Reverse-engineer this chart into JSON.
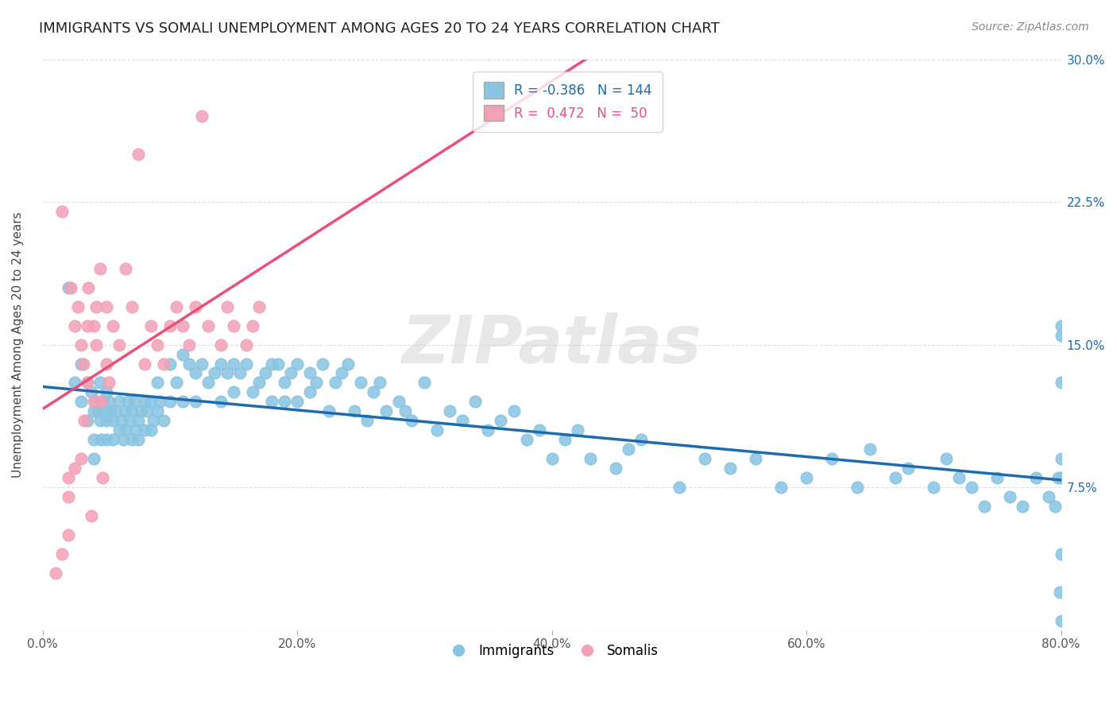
{
  "title": "IMMIGRANTS VS SOMALI UNEMPLOYMENT AMONG AGES 20 TO 24 YEARS CORRELATION CHART",
  "source": "Source: ZipAtlas.com",
  "ylabel": "Unemployment Among Ages 20 to 24 years",
  "xlim": [
    0.0,
    0.8
  ],
  "ylim": [
    0.0,
    0.3
  ],
  "xticks": [
    0.0,
    0.2,
    0.4,
    0.6,
    0.8
  ],
  "yticks": [
    0.0,
    0.075,
    0.15,
    0.225,
    0.3
  ],
  "xtick_labels": [
    "0.0%",
    "20.0%",
    "40.0%",
    "60.0%",
    "80.0%"
  ],
  "ytick_labels": [
    "",
    "7.5%",
    "15.0%",
    "22.5%",
    "30.0%"
  ],
  "immigrant_color": "#89C4E1",
  "somali_color": "#F4A0B5",
  "immigrant_line_color": "#1E6BAD",
  "somali_line_color": "#E8507A",
  "R_immigrant": -0.386,
  "N_immigrant": 144,
  "R_somali": 0.472,
  "N_somali": 50,
  "watermark": "ZIPatlas",
  "background_color": "#FFFFFF",
  "grid_color": "#DDDDDD",
  "title_fontsize": 13,
  "source_fontsize": 10,
  "immigrant_scatter_x": [
    0.02,
    0.025,
    0.03,
    0.03,
    0.035,
    0.035,
    0.038,
    0.04,
    0.04,
    0.04,
    0.042,
    0.043,
    0.045,
    0.045,
    0.046,
    0.047,
    0.048,
    0.05,
    0.05,
    0.05,
    0.052,
    0.053,
    0.055,
    0.055,
    0.057,
    0.06,
    0.06,
    0.062,
    0.063,
    0.065,
    0.065,
    0.067,
    0.068,
    0.07,
    0.07,
    0.072,
    0.073,
    0.075,
    0.075,
    0.077,
    0.08,
    0.08,
    0.082,
    0.085,
    0.085,
    0.087,
    0.09,
    0.09,
    0.092,
    0.095,
    0.1,
    0.1,
    0.105,
    0.11,
    0.11,
    0.115,
    0.12,
    0.12,
    0.125,
    0.13,
    0.135,
    0.14,
    0.14,
    0.145,
    0.15,
    0.15,
    0.155,
    0.16,
    0.165,
    0.17,
    0.175,
    0.18,
    0.18,
    0.185,
    0.19,
    0.19,
    0.195,
    0.2,
    0.2,
    0.21,
    0.21,
    0.215,
    0.22,
    0.225,
    0.23,
    0.235,
    0.24,
    0.245,
    0.25,
    0.255,
    0.26,
    0.265,
    0.27,
    0.28,
    0.285,
    0.29,
    0.3,
    0.31,
    0.32,
    0.33,
    0.34,
    0.35,
    0.36,
    0.37,
    0.38,
    0.39,
    0.4,
    0.41,
    0.42,
    0.43,
    0.45,
    0.46,
    0.47,
    0.5,
    0.52,
    0.54,
    0.56,
    0.58,
    0.6,
    0.62,
    0.64,
    0.65,
    0.67,
    0.68,
    0.7,
    0.71,
    0.72,
    0.73,
    0.74,
    0.75,
    0.76,
    0.77,
    0.78,
    0.79,
    0.795,
    0.798,
    0.799,
    0.8,
    0.8,
    0.8,
    0.8,
    0.8,
    0.8,
    0.8
  ],
  "immigrant_scatter_y": [
    0.18,
    0.13,
    0.14,
    0.12,
    0.13,
    0.11,
    0.125,
    0.115,
    0.1,
    0.09,
    0.12,
    0.115,
    0.13,
    0.11,
    0.1,
    0.12,
    0.115,
    0.125,
    0.11,
    0.1,
    0.12,
    0.115,
    0.1,
    0.11,
    0.115,
    0.12,
    0.105,
    0.11,
    0.1,
    0.115,
    0.105,
    0.12,
    0.11,
    0.1,
    0.115,
    0.12,
    0.105,
    0.11,
    0.1,
    0.115,
    0.12,
    0.105,
    0.115,
    0.12,
    0.105,
    0.11,
    0.13,
    0.115,
    0.12,
    0.11,
    0.14,
    0.12,
    0.13,
    0.145,
    0.12,
    0.14,
    0.135,
    0.12,
    0.14,
    0.13,
    0.135,
    0.14,
    0.12,
    0.135,
    0.14,
    0.125,
    0.135,
    0.14,
    0.125,
    0.13,
    0.135,
    0.14,
    0.12,
    0.14,
    0.13,
    0.12,
    0.135,
    0.14,
    0.12,
    0.135,
    0.125,
    0.13,
    0.14,
    0.115,
    0.13,
    0.135,
    0.14,
    0.115,
    0.13,
    0.11,
    0.125,
    0.13,
    0.115,
    0.12,
    0.115,
    0.11,
    0.13,
    0.105,
    0.115,
    0.11,
    0.12,
    0.105,
    0.11,
    0.115,
    0.1,
    0.105,
    0.09,
    0.1,
    0.105,
    0.09,
    0.085,
    0.095,
    0.1,
    0.075,
    0.09,
    0.085,
    0.09,
    0.075,
    0.08,
    0.09,
    0.075,
    0.095,
    0.08,
    0.085,
    0.075,
    0.09,
    0.08,
    0.075,
    0.065,
    0.08,
    0.07,
    0.065,
    0.08,
    0.07,
    0.065,
    0.08,
    0.02,
    0.005,
    0.04,
    0.08,
    0.13,
    0.16,
    0.155,
    0.09
  ],
  "somali_scatter_x": [
    0.01,
    0.015,
    0.015,
    0.02,
    0.02,
    0.02,
    0.022,
    0.025,
    0.025,
    0.028,
    0.03,
    0.03,
    0.032,
    0.033,
    0.035,
    0.035,
    0.036,
    0.038,
    0.04,
    0.04,
    0.042,
    0.042,
    0.045,
    0.046,
    0.047,
    0.05,
    0.05,
    0.052,
    0.055,
    0.06,
    0.065,
    0.07,
    0.075,
    0.08,
    0.085,
    0.09,
    0.095,
    0.1,
    0.105,
    0.11,
    0.115,
    0.12,
    0.125,
    0.13,
    0.14,
    0.145,
    0.15,
    0.16,
    0.165,
    0.17
  ],
  "somali_scatter_y": [
    0.03,
    0.22,
    0.04,
    0.07,
    0.05,
    0.08,
    0.18,
    0.085,
    0.16,
    0.17,
    0.09,
    0.15,
    0.14,
    0.11,
    0.16,
    0.13,
    0.18,
    0.06,
    0.16,
    0.12,
    0.17,
    0.15,
    0.19,
    0.12,
    0.08,
    0.14,
    0.17,
    0.13,
    0.16,
    0.15,
    0.19,
    0.17,
    0.25,
    0.14,
    0.16,
    0.15,
    0.14,
    0.16,
    0.17,
    0.16,
    0.15,
    0.17,
    0.27,
    0.16,
    0.15,
    0.17,
    0.16,
    0.15,
    0.16,
    0.17
  ]
}
